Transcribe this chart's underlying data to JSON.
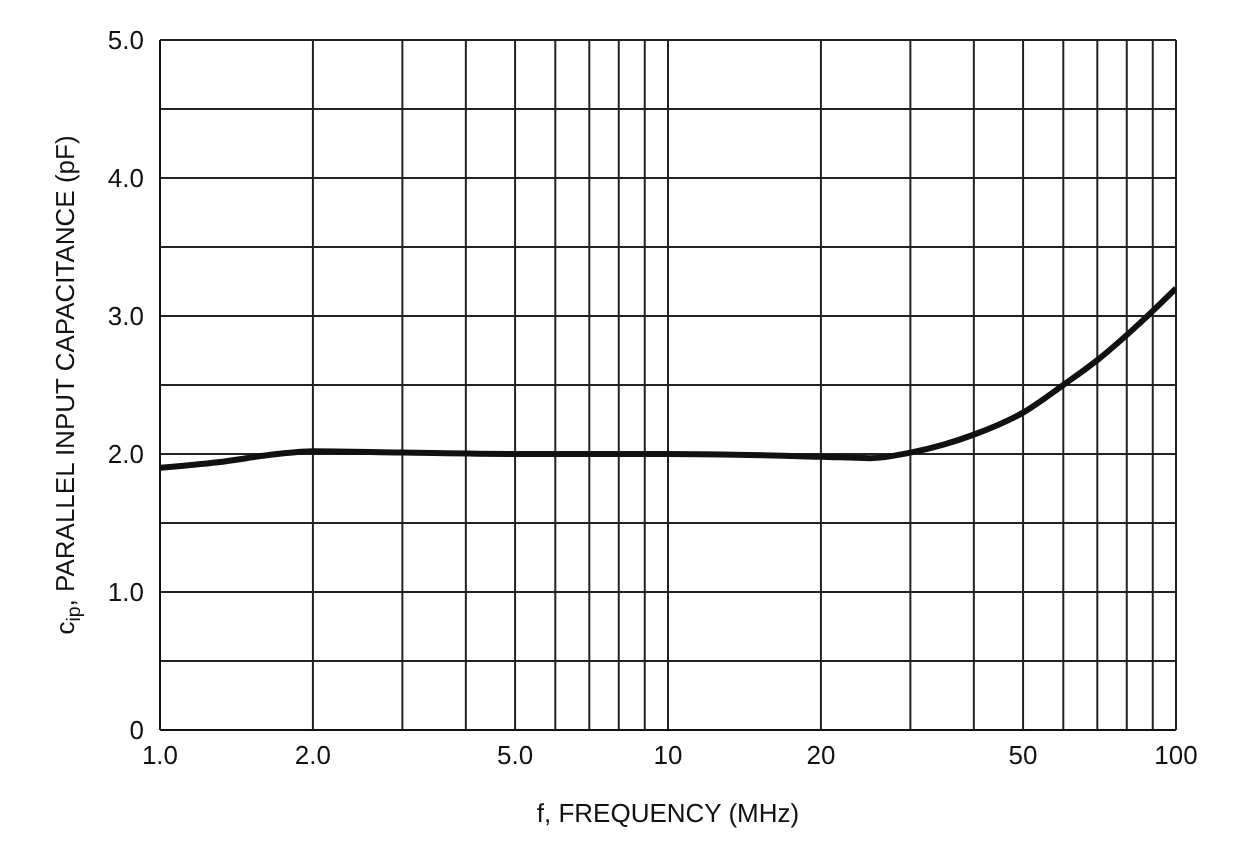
{
  "chart_data": {
    "type": "line",
    "xlabel": "f, FREQUENCY (MHz)",
    "ylabel": "c$_{ip}$, PARALLEL INPUT CAPACITANCE (pF)",
    "log": "x",
    "x": [
      1,
      1.3,
      1.7,
      2,
      3,
      5,
      10,
      20,
      25,
      30,
      35,
      40,
      50,
      60,
      70,
      85,
      100
    ],
    "series": [
      {
        "color": "#111111",
        "values": [
          1.9,
          1.94,
          2.0,
          2.02,
          2.01,
          2.0,
          2.0,
          1.98,
          1.97,
          2.01,
          2.07,
          2.14,
          2.3,
          2.5,
          2.68,
          2.95,
          3.2
        ]
      }
    ],
    "xlim": [
      1,
      100
    ],
    "ylim": [
      0,
      5
    ],
    "xticks": [
      {
        "value": 1,
        "label": "1.0"
      },
      {
        "value": 2,
        "label": "2.0"
      },
      {
        "value": 3,
        "label": null
      },
      {
        "value": 4,
        "label": null
      },
      {
        "value": 5,
        "label": "5.0"
      },
      {
        "value": 6,
        "label": null
      },
      {
        "value": 7,
        "label": null
      },
      {
        "value": 8,
        "label": null
      },
      {
        "value": 9,
        "label": null
      },
      10,
      20,
      {
        "value": 30,
        "label": null
      },
      {
        "value": 40,
        "label": null
      },
      50,
      {
        "value": 60,
        "label": null
      },
      {
        "value": 70,
        "label": null
      },
      {
        "value": 80,
        "label": null
      },
      {
        "value": 90,
        "label": null
      },
      100
    ],
    "yticks": [
      0,
      {
        "value": 0.5,
        "label": null
      },
      {
        "value": 1,
        "label": "1.0"
      },
      {
        "value": 1.5,
        "label": null
      },
      {
        "value": 2,
        "label": "2.0"
      },
      {
        "value": 2.5,
        "label": null
      },
      {
        "value": 3,
        "label": "3.0"
      },
      {
        "value": 3.5,
        "label": null
      },
      {
        "value": 4,
        "label": "4.0"
      },
      {
        "value": 4.5,
        "label": null
      },
      {
        "value": 5,
        "label": "5.0"
      }
    ],
    "grid": true,
    "marker": "none",
    "line_style": "solid"
  }
}
